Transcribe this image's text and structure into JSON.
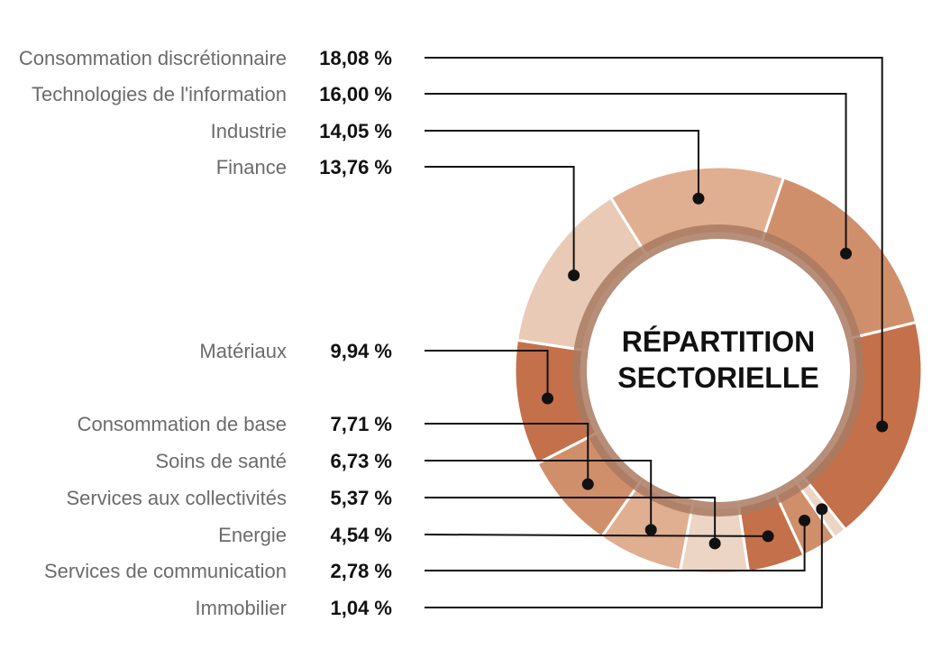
{
  "chart_data": {
    "type": "donut",
    "title_lines": [
      "RÉPARTITION",
      "SECTORIELLE"
    ],
    "categories": [
      "Consommation discrétionnaire",
      "Technologies de l'information",
      "Industrie",
      "Finance",
      "Matériaux",
      "Consommation de base",
      "Soins de santé",
      "Services aux collectivités",
      "Energie",
      "Services de communication",
      "Immobilier"
    ],
    "values": [
      18.08,
      16.0,
      14.05,
      13.76,
      9.94,
      7.71,
      6.73,
      5.37,
      4.54,
      2.78,
      1.04
    ],
    "value_labels": [
      "18,08 %",
      "16,00 %",
      "14,05 %",
      "13,76 %",
      "9,94 %",
      "7,71 %",
      "6,73 %",
      "5,37 %",
      "4,54 %",
      "2,78 %",
      "1,04 %"
    ],
    "colors": [
      "#c4704a",
      "#d08f6b",
      "#e0ae90",
      "#e8cab6",
      "#c4704a",
      "#d08f6b",
      "#e0ae90",
      "#ecd5c4",
      "#c4704a",
      "#d08f6b",
      "#ecd5c4"
    ],
    "inner_ring_color": "#a97a62",
    "leader_color": "#111111"
  }
}
